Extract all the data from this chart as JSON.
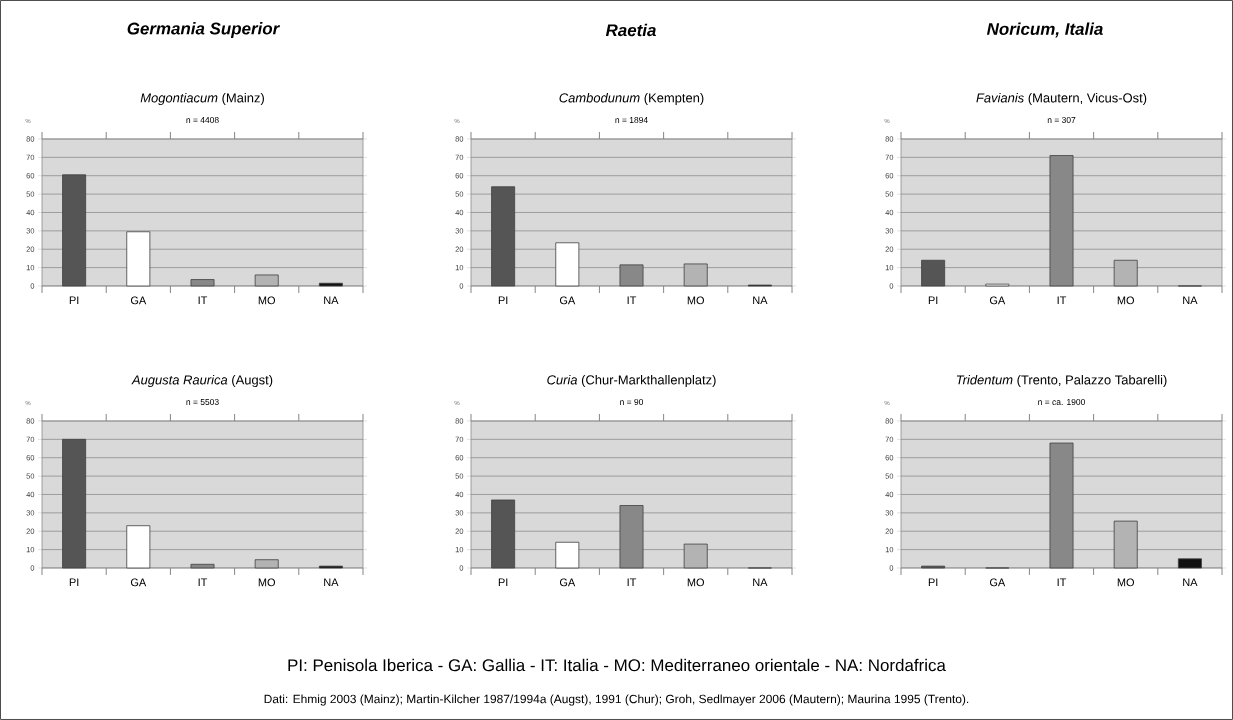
{
  "chart_data": [
    {
      "type": "bar",
      "title": "*Mogontiacum* (Mainz)",
      "subtitle": "n = 4408",
      "ylabel": "%",
      "categories": [
        "PI",
        "GA",
        "IT",
        "MO",
        "NA"
      ],
      "values": [
        60.5,
        29.5,
        3.5,
        6,
        1.5
      ],
      "colors": [
        "#555555",
        "#ffffff",
        "#888888",
        "#b3b3b3",
        "#111111"
      ],
      "ylim": [
        0,
        80
      ],
      "yticks": [
        0,
        10,
        20,
        30,
        40,
        50,
        60,
        70,
        80
      ],
      "grid": "y",
      "annotations": [
        "Germania Superior"
      ]
    },
    {
      "type": "bar",
      "title": "*Cambodunum* (Kempten)",
      "subtitle": "n = 1894",
      "ylabel": "%",
      "categories": [
        "PI",
        "GA",
        "IT",
        "MO",
        "NA"
      ],
      "values": [
        54,
        23.5,
        11.5,
        12,
        0.5
      ],
      "colors": [
        "#555555",
        "#ffffff",
        "#888888",
        "#b3b3b3",
        "#111111"
      ],
      "ylim": [
        0,
        80
      ],
      "yticks": [
        0,
        10,
        20,
        30,
        40,
        50,
        60,
        70,
        80
      ],
      "grid": "y",
      "annotations": [
        "Raetia"
      ]
    },
    {
      "type": "bar",
      "title": "*Favianis* (Mautern, Vicus-Ost)",
      "subtitle": "n = 307",
      "ylabel": "%",
      "categories": [
        "PI",
        "GA",
        "IT",
        "MO",
        "NA"
      ],
      "values": [
        14,
        1,
        71,
        14,
        0
      ],
      "colors": [
        "#555555",
        "#ffffff",
        "#888888",
        "#b3b3b3",
        "#111111"
      ],
      "ylim": [
        0,
        80
      ],
      "yticks": [
        0,
        10,
        20,
        30,
        40,
        50,
        60,
        70,
        80
      ],
      "grid": "y",
      "annotations": [
        "Noricum, Italia"
      ]
    },
    {
      "type": "bar",
      "title": "*Augusta Raurica* (Augst)",
      "subtitle": "n = 5503",
      "ylabel": "%",
      "categories": [
        "PI",
        "GA",
        "IT",
        "MO",
        "NA"
      ],
      "values": [
        70,
        23,
        2,
        4.5,
        1
      ],
      "colors": [
        "#555555",
        "#ffffff",
        "#888888",
        "#b3b3b3",
        "#111111"
      ],
      "ylim": [
        0,
        80
      ],
      "yticks": [
        0,
        10,
        20,
        30,
        40,
        50,
        60,
        70,
        80
      ],
      "grid": "y"
    },
    {
      "type": "bar",
      "title": "*Curia* (Chur-Markthallenplatz)",
      "subtitle": "n = 90",
      "ylabel": "%",
      "categories": [
        "PI",
        "GA",
        "IT",
        "MO",
        "NA"
      ],
      "values": [
        37,
        14,
        34,
        13,
        0
      ],
      "colors": [
        "#555555",
        "#ffffff",
        "#888888",
        "#b3b3b3",
        "#111111"
      ],
      "ylim": [
        0,
        80
      ],
      "yticks": [
        0,
        10,
        20,
        30,
        40,
        50,
        60,
        70,
        80
      ],
      "grid": "y"
    },
    {
      "type": "bar",
      "title": "*Tridentum* (Trento, Palazzo Tabarelli)",
      "subtitle": "n = ca. 1900",
      "ylabel": "%",
      "categories": [
        "PI",
        "GA",
        "IT",
        "MO",
        "NA"
      ],
      "values": [
        1,
        0,
        68,
        25.5,
        5
      ],
      "colors": [
        "#555555",
        "#ffffff",
        "#888888",
        "#b3b3b3",
        "#111111"
      ],
      "ylim": [
        0,
        80
      ],
      "yticks": [
        0,
        10,
        20,
        30,
        40,
        50,
        60,
        70,
        80
      ],
      "grid": "y",
      "annotations": [
        "PI: Penisola Iberica - GA: Gallia - IT: Italia - MO: Mediterraneo orientale - NA: Nordafrica",
        "Dati: Ehmig 2003 (Mainz); Martin-Kilcher 1987/1994a (Augst), 1991 (Chur); Groh, Sedlmayer 2006 (Mautern); Maurina 1995 (Trento)."
      ]
    }
  ]
}
